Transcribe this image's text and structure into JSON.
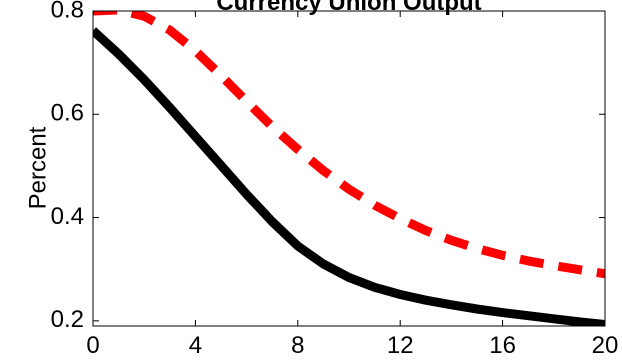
{
  "chart_data": {
    "type": "line",
    "title": "Currency Union Output",
    "xlabel": "",
    "ylabel": "Percent",
    "xlim": [
      0,
      20
    ],
    "ylim": [
      0.19,
      0.8
    ],
    "xticks": [
      0,
      4,
      8,
      12,
      16,
      20
    ],
    "xtick_labels": [
      "0",
      "4",
      "8",
      "12",
      "16",
      "20"
    ],
    "yticks": [
      0.2,
      0.4,
      0.6,
      0.8
    ],
    "ytick_labels": [
      "0.2",
      "0.4",
      "0.6",
      "0.8"
    ],
    "grid": false,
    "series": [
      {
        "color": "#000000",
        "style": "solid",
        "x": [
          0,
          1,
          2,
          3,
          4,
          5,
          6,
          7,
          8,
          9,
          10,
          11,
          12,
          13,
          14,
          15,
          16,
          17,
          18,
          19,
          20
        ],
        "y": [
          0.762,
          0.717,
          0.667,
          0.613,
          0.557,
          0.501,
          0.445,
          0.392,
          0.345,
          0.31,
          0.284,
          0.265,
          0.251,
          0.24,
          0.231,
          0.223,
          0.216,
          0.21,
          0.204,
          0.198,
          0.193
        ]
      },
      {
        "color": "#ff0000",
        "style": "dashed",
        "x": [
          0,
          1,
          2,
          3,
          4,
          5,
          6,
          7,
          8,
          9,
          10,
          11,
          12,
          13,
          14,
          15,
          16,
          17,
          18,
          19,
          20
        ],
        "y": [
          0.8,
          0.802,
          0.79,
          0.763,
          0.723,
          0.675,
          0.625,
          0.576,
          0.532,
          0.491,
          0.455,
          0.424,
          0.398,
          0.375,
          0.356,
          0.34,
          0.327,
          0.316,
          0.307,
          0.299,
          0.291
        ]
      }
    ]
  }
}
